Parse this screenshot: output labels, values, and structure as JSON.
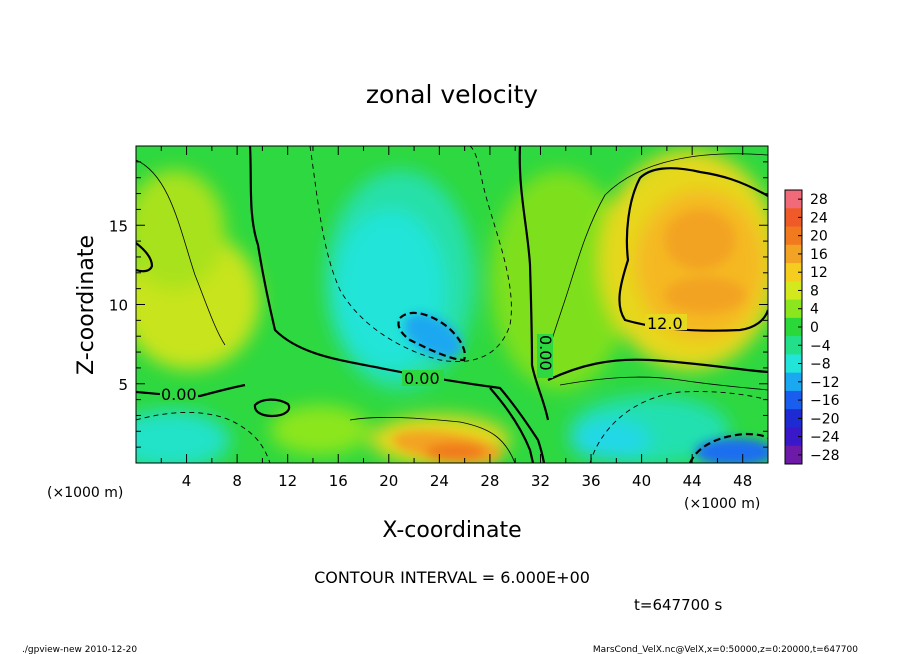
{
  "chart_data": {
    "type": "heatmap",
    "title": "zonal velocity",
    "xlabel": "X-coordinate",
    "ylabel": "Z-coordinate",
    "x_unit_label": "(×1000 m)",
    "y_unit_label": "(×1000 m)",
    "xlim": [
      0,
      50
    ],
    "ylim": [
      0,
      20
    ],
    "x_ticks": [
      4,
      8,
      12,
      16,
      20,
      24,
      28,
      32,
      36,
      40,
      44,
      48
    ],
    "y_ticks": [
      5,
      10,
      15
    ],
    "colorbar": {
      "levels": [
        28,
        24,
        20,
        16,
        12,
        8,
        4,
        0,
        -4,
        -8,
        -12,
        -16,
        -20,
        -24,
        -28
      ],
      "colors": [
        "#f06a7a",
        "#f05a28",
        "#f17a1e",
        "#f3a324",
        "#f5cd1e",
        "#d4e81e",
        "#8ce61e",
        "#2ad83a",
        "#22e08a",
        "#22e4d8",
        "#1aa8f0",
        "#1a5ef0",
        "#1e2ad2",
        "#3818c8",
        "#6e1aa8"
      ]
    },
    "field_features": [
      {
        "x": 22.5,
        "z": 8.0,
        "value": -14
      },
      {
        "x": 25.0,
        "z": 1.5,
        "value": 16
      },
      {
        "x": 43.0,
        "z": 13.0,
        "value": 14
      },
      {
        "x": 47.0,
        "z": 1.0,
        "value": -12
      }
    ],
    "contour_labels": [
      "0.00",
      "0.00",
      "0.00",
      "12.0"
    ],
    "contour_interval_text": "CONTOUR INTERVAL = 6.000E+00",
    "time_text": "t=647700 s",
    "footer_left": "./gpview-new   2010-12-20",
    "footer_right": "MarsCond_VelX.nc@VelX,x=0:50000,z=0:20000,t=647700"
  }
}
